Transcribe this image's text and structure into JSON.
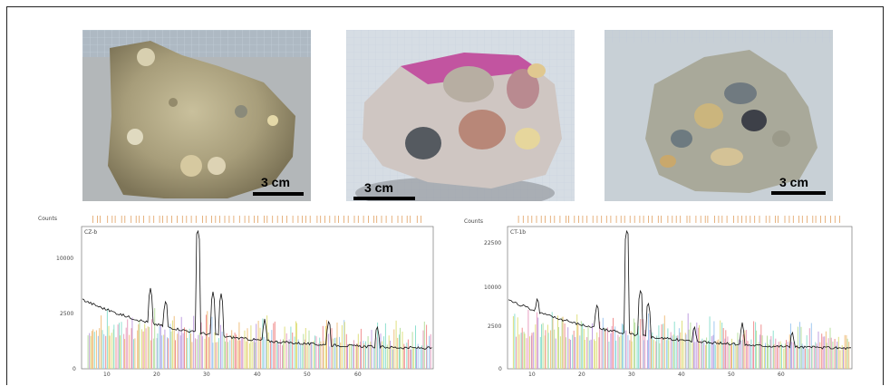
{
  "photos": [
    {
      "scale_label": "3 cm"
    },
    {
      "scale_label": "3 cm"
    },
    {
      "scale_label": "3 cm"
    }
  ],
  "xrd_left": {
    "counts_label": "Counts",
    "sample_label": "CZ-b",
    "y_ticks": [
      "10000",
      "2500",
      "0"
    ],
    "x_ticks": [
      "10",
      "20",
      "30",
      "40",
      "50",
      "60"
    ]
  },
  "xrd_right": {
    "counts_label": "Counts",
    "sample_label": "CT-1b",
    "y_ticks": [
      "22500",
      "10000",
      "2500",
      "0"
    ],
    "x_ticks": [
      "10",
      "20",
      "30",
      "40",
      "50",
      "60"
    ]
  },
  "colors": {
    "peak_lines": [
      "#e8a0c0",
      "#a0c8f0",
      "#f0c080",
      "#b8e0a0",
      "#c0a0e0",
      "#f09090",
      "#90e0d0",
      "#e0e080"
    ],
    "reference_ticks": "#e0a060",
    "pattern": "#111111"
  }
}
